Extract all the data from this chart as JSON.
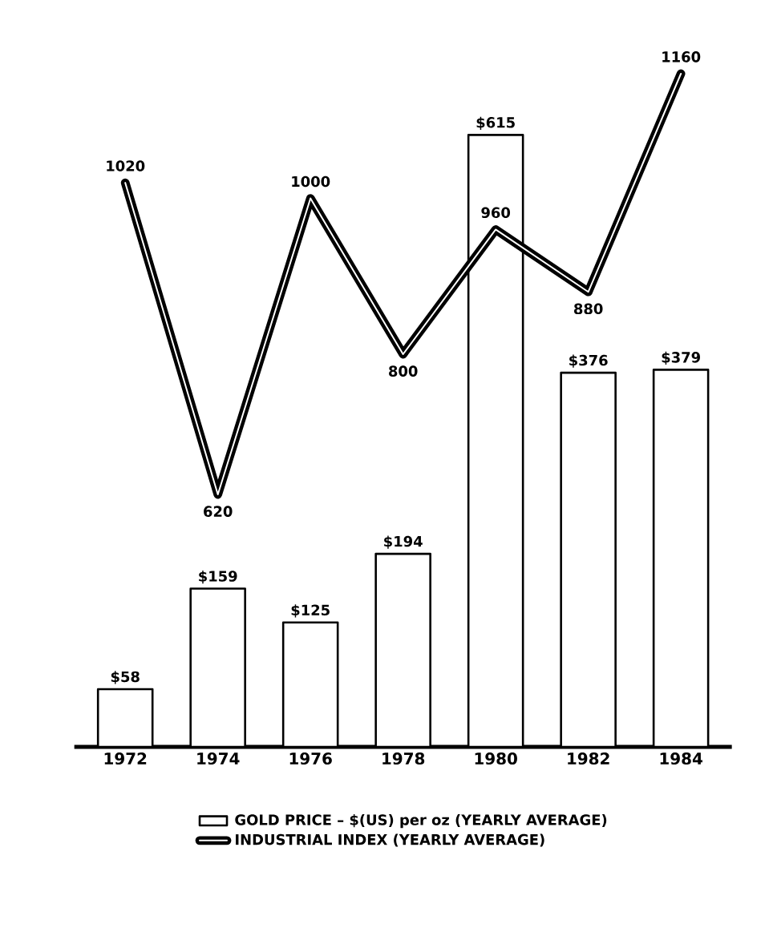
{
  "chart_data": {
    "type": "bar",
    "categories": [
      "1972",
      "1974",
      "1976",
      "1978",
      "1980",
      "1982",
      "1984"
    ],
    "legend": "bottom",
    "series": [
      {
        "name": "GOLD PRICE – $(US) per oz (YEARLY AVERAGE)",
        "type": "bar",
        "color": "#ffffff",
        "values": [
          58,
          159,
          125,
          194,
          615,
          376,
          379
        ],
        "value_labels": [
          "$58",
          "$159",
          "$125",
          "$194",
          "$615",
          "$376",
          "$379"
        ]
      },
      {
        "name": "INDUSTRIAL INDEX (YEARLY AVERAGE)",
        "type": "line",
        "axis": "y2",
        "color": "#000000",
        "values": [
          1020,
          620,
          1000,
          800,
          960,
          880,
          1160
        ],
        "value_labels": [
          "1020",
          "620",
          "1000",
          "800",
          "960",
          "880",
          "1160"
        ]
      }
    ]
  }
}
